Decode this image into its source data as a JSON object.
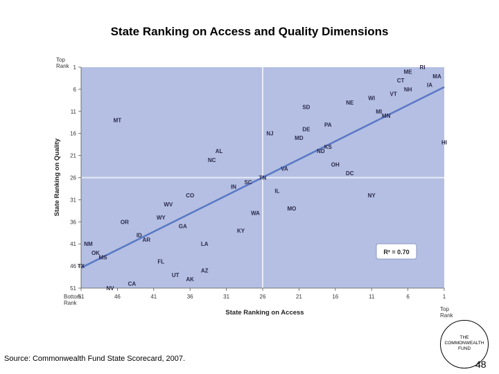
{
  "slide": {
    "title": "State Ranking on Access and Quality Dimensions",
    "source": "Source: Commonwealth Fund State Scorecard, 2007.",
    "logo": [
      "THE",
      "COMMONWEALTH",
      "FUND"
    ],
    "page_number": "48"
  },
  "chart_data": {
    "type": "scatter",
    "xlabel": "State Ranking on Access",
    "ylabel": "State Ranking on Quality",
    "xlim": [
      51,
      1
    ],
    "ylim": [
      51,
      1
    ],
    "x_reversed": true,
    "y_reversed": true,
    "xticks": [
      51,
      46,
      41,
      36,
      31,
      26,
      21,
      16,
      11,
      6,
      1
    ],
    "yticks": [
      1,
      6,
      11,
      16,
      21,
      26,
      31,
      36,
      41,
      46,
      51
    ],
    "x_axis_end_labels": {
      "left": [
        "Bottom",
        "Rank"
      ],
      "right": [
        "Top",
        "Rank"
      ]
    },
    "y_axis_end_labels": {
      "top": [
        "Top",
        "Rank"
      ]
    },
    "reference_lines": {
      "x": 26,
      "y": 26
    },
    "grid": false,
    "annotation": "R² = 0.70",
    "colors": {
      "plot_background": "#b4bfe3",
      "trend_line": "#5b79c4",
      "reference_line": "#e9ecf7",
      "label": "#2a2a4a"
    },
    "trend_line": {
      "x": [
        51,
        1
      ],
      "y": [
        46.4,
        5.5
      ]
    },
    "points": [
      {
        "label": "RI",
        "x": 4,
        "y": 1
      },
      {
        "label": "ME",
        "x": 6,
        "y": 2
      },
      {
        "label": "MA",
        "x": 2,
        "y": 3
      },
      {
        "label": "CT",
        "x": 7,
        "y": 4
      },
      {
        "label": "IA",
        "x": 3,
        "y": 5
      },
      {
        "label": "NH",
        "x": 6,
        "y": 6
      },
      {
        "label": "VT",
        "x": 8,
        "y": 7
      },
      {
        "label": "WI",
        "x": 11,
        "y": 8
      },
      {
        "label": "NE",
        "x": 14,
        "y": 9
      },
      {
        "label": "SD",
        "x": 20,
        "y": 10
      },
      {
        "label": "MI",
        "x": 10,
        "y": 11
      },
      {
        "label": "MN",
        "x": 9,
        "y": 12
      },
      {
        "label": "MT",
        "x": 46,
        "y": 13
      },
      {
        "label": "PA",
        "x": 17,
        "y": 14
      },
      {
        "label": "DE",
        "x": 20,
        "y": 15
      },
      {
        "label": "NJ",
        "x": 25,
        "y": 16
      },
      {
        "label": "MD",
        "x": 21,
        "y": 17
      },
      {
        "label": "HI",
        "x": 1,
        "y": 18
      },
      {
        "label": "KS",
        "x": 17,
        "y": 19
      },
      {
        "label": "ND",
        "x": 18,
        "y": 20
      },
      {
        "label": "AL",
        "x": 32,
        "y": 20
      },
      {
        "label": "NC",
        "x": 33,
        "y": 22
      },
      {
        "label": "OH",
        "x": 16,
        "y": 23
      },
      {
        "label": "VA",
        "x": 23,
        "y": 24
      },
      {
        "label": "DC",
        "x": 14,
        "y": 25
      },
      {
        "label": "TN",
        "x": 26,
        "y": 26
      },
      {
        "label": "SC",
        "x": 28,
        "y": 27
      },
      {
        "label": "IN",
        "x": 30,
        "y": 28
      },
      {
        "label": "IL",
        "x": 24,
        "y": 29
      },
      {
        "label": "CO",
        "x": 36,
        "y": 30
      },
      {
        "label": "NY",
        "x": 11,
        "y": 30
      },
      {
        "label": "WV",
        "x": 39,
        "y": 32
      },
      {
        "label": "MO",
        "x": 22,
        "y": 33
      },
      {
        "label": "WA",
        "x": 27,
        "y": 34
      },
      {
        "label": "WY",
        "x": 40,
        "y": 35
      },
      {
        "label": "OR",
        "x": 45,
        "y": 36
      },
      {
        "label": "GA",
        "x": 37,
        "y": 37
      },
      {
        "label": "KY",
        "x": 29,
        "y": 38
      },
      {
        "label": "ID",
        "x": 43,
        "y": 39
      },
      {
        "label": "AR",
        "x": 42,
        "y": 40
      },
      {
        "label": "NM",
        "x": 50,
        "y": 41
      },
      {
        "label": "LA",
        "x": 34,
        "y": 41
      },
      {
        "label": "OK",
        "x": 49,
        "y": 43
      },
      {
        "label": "MS",
        "x": 48,
        "y": 44
      },
      {
        "label": "FL",
        "x": 40,
        "y": 45
      },
      {
        "label": "TX",
        "x": 51,
        "y": 46
      },
      {
        "label": "AZ",
        "x": 34,
        "y": 47
      },
      {
        "label": "UT",
        "x": 38,
        "y": 48
      },
      {
        "label": "AK",
        "x": 36,
        "y": 49
      },
      {
        "label": "CA",
        "x": 44,
        "y": 50
      },
      {
        "label": "NV",
        "x": 47,
        "y": 51
      }
    ]
  }
}
